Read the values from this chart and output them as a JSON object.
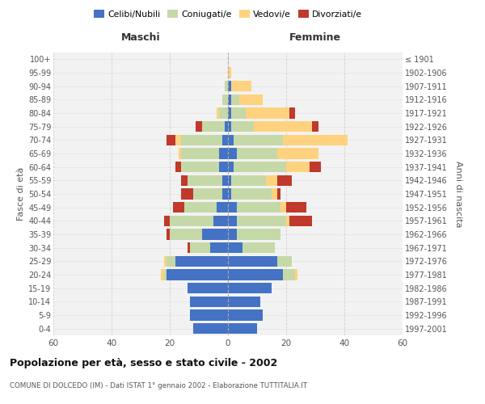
{
  "age_groups": [
    "0-4",
    "5-9",
    "10-14",
    "15-19",
    "20-24",
    "25-29",
    "30-34",
    "35-39",
    "40-44",
    "45-49",
    "50-54",
    "55-59",
    "60-64",
    "65-69",
    "70-74",
    "75-79",
    "80-84",
    "85-89",
    "90-94",
    "95-99",
    "100+"
  ],
  "birth_years": [
    "1997-2001",
    "1992-1996",
    "1987-1991",
    "1982-1986",
    "1977-1981",
    "1972-1976",
    "1967-1971",
    "1962-1966",
    "1957-1961",
    "1952-1956",
    "1947-1951",
    "1942-1946",
    "1937-1941",
    "1932-1936",
    "1927-1931",
    "1922-1926",
    "1917-1921",
    "1912-1916",
    "1907-1911",
    "1902-1906",
    "≤ 1901"
  ],
  "males": {
    "celibi": [
      12,
      13,
      13,
      14,
      21,
      18,
      6,
      9,
      5,
      4,
      2,
      2,
      3,
      3,
      2,
      1,
      0,
      0,
      0,
      0,
      0
    ],
    "coniugati": [
      0,
      0,
      0,
      0,
      1,
      3,
      7,
      11,
      15,
      11,
      10,
      12,
      13,
      13,
      14,
      8,
      3,
      2,
      1,
      0,
      0
    ],
    "vedovi": [
      0,
      0,
      0,
      0,
      1,
      1,
      0,
      0,
      0,
      0,
      0,
      0,
      0,
      1,
      2,
      0,
      1,
      0,
      0,
      0,
      0
    ],
    "divorziati": [
      0,
      0,
      0,
      0,
      0,
      0,
      1,
      1,
      2,
      4,
      4,
      2,
      2,
      0,
      3,
      2,
      0,
      0,
      0,
      0,
      0
    ]
  },
  "females": {
    "nubili": [
      10,
      12,
      11,
      15,
      19,
      17,
      5,
      3,
      3,
      3,
      1,
      1,
      2,
      3,
      2,
      1,
      1,
      1,
      1,
      0,
      0
    ],
    "coniugate": [
      0,
      0,
      0,
      0,
      4,
      5,
      11,
      15,
      17,
      15,
      14,
      12,
      18,
      14,
      17,
      8,
      5,
      3,
      0,
      0,
      0
    ],
    "vedove": [
      0,
      0,
      0,
      0,
      1,
      0,
      0,
      0,
      1,
      2,
      2,
      4,
      8,
      14,
      22,
      20,
      15,
      8,
      7,
      1,
      0
    ],
    "divorziate": [
      0,
      0,
      0,
      0,
      0,
      0,
      0,
      0,
      8,
      7,
      1,
      5,
      4,
      0,
      0,
      2,
      2,
      0,
      0,
      0,
      0
    ]
  },
  "colors": {
    "celibi": "#4472C4",
    "coniugati": "#C5D9A8",
    "vedovi": "#FFD27F",
    "divorziati": "#C0392B"
  },
  "xlim": 60,
  "title": "Popolazione per età, sesso e stato civile - 2002",
  "subtitle": "COMUNE DI DOLCEDO (IM) - Dati ISTAT 1° gennaio 2002 - Elaborazione TUTTITALIA.IT",
  "legend_labels": [
    "Celibi/Nubili",
    "Coniugati/e",
    "Vedovi/e",
    "Divorziati/e"
  ],
  "xlabel_left": "Maschi",
  "xlabel_right": "Femmine",
  "ylabel_left": "Fasce di età",
  "ylabel_right": "Anni di nascita",
  "bg_color": "#FFFFFF",
  "plot_bg_color": "#F2F2F2"
}
